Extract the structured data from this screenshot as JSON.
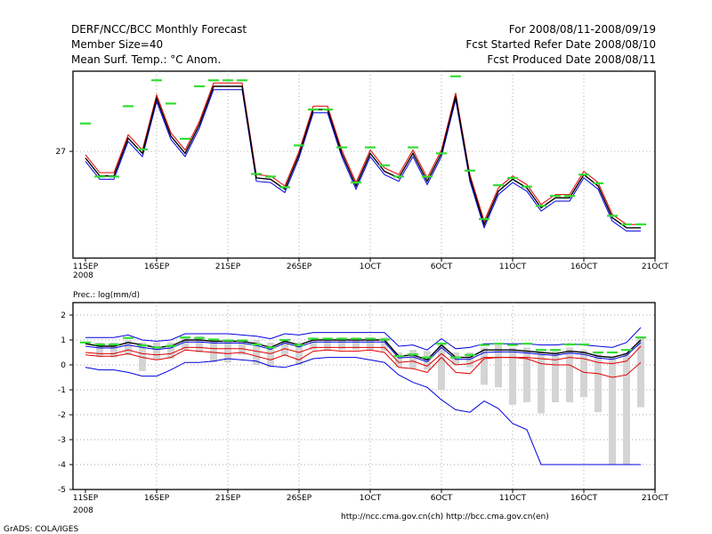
{
  "header": {
    "left": [
      "DERF/NCC/BCC Monthly Forecast",
      "Member Size=40",
      "Mean Surf. Temp.: °C Anom."
    ],
    "right": [
      "For 2008/08/11-2008/09/19",
      "Fcst Started Refer Date 2008/08/10",
      "Fcst Produced Date 2008/08/11"
    ]
  },
  "footer": {
    "urls": "http://ncc.cma.gov.cn(ch)   http://bcc.cma.gov.cn(en)",
    "credit": "GrADS: COLA/IGES"
  },
  "colors": {
    "mean": "#000000",
    "member_hi": "#e00000",
    "member_lo": "#0000e0",
    "bar": "#d4d4d4",
    "obs": "#33dd33",
    "grid": "#888888"
  },
  "chart_data": [
    {
      "type": "line",
      "title": "Mean Surf. Temp.: °C Anom.",
      "x_tick_labels": [
        "11SEP",
        "16SEP",
        "21SEP",
        "26SEP",
        "1OCT",
        "6OCT",
        "11OCT",
        "16OCT",
        "21OCT"
      ],
      "x_year_label": "2008",
      "y_tick_labels": [
        "27"
      ],
      "ylim": [
        25.5,
        28.1
      ],
      "x_start_day": 0,
      "series": [
        {
          "name": "ensemble mean",
          "values": [
            26.9,
            26.63,
            26.63,
            27.2,
            26.97,
            27.8,
            27.23,
            26.97,
            27.4,
            27.98,
            27.98,
            27.98,
            26.6,
            26.58,
            26.43,
            26.95,
            27.63,
            27.63,
            26.97,
            26.48,
            26.97,
            26.7,
            26.6,
            26.97,
            26.55,
            26.97,
            27.83,
            26.6,
            25.9,
            26.4,
            26.58,
            26.45,
            26.15,
            26.3,
            26.3,
            26.65,
            26.48,
            26.0,
            25.85,
            25.85
          ]
        },
        {
          "name": "member high",
          "values": [
            26.95,
            26.68,
            26.68,
            27.25,
            27.02,
            27.85,
            27.28,
            27.02,
            27.45,
            28.03,
            28.03,
            28.03,
            26.65,
            26.63,
            26.48,
            27.0,
            27.68,
            27.68,
            27.02,
            26.53,
            27.02,
            26.75,
            26.65,
            27.02,
            26.6,
            27.02,
            27.88,
            26.65,
            25.95,
            26.45,
            26.63,
            26.5,
            26.2,
            26.35,
            26.35,
            26.7,
            26.53,
            26.05,
            25.9,
            25.9
          ]
        },
        {
          "name": "member low",
          "values": [
            26.85,
            26.58,
            26.58,
            27.15,
            26.92,
            27.75,
            27.18,
            26.92,
            27.35,
            27.93,
            27.93,
            27.93,
            26.55,
            26.53,
            26.38,
            26.9,
            27.58,
            27.58,
            26.92,
            26.43,
            26.92,
            26.65,
            26.55,
            26.92,
            26.5,
            26.92,
            27.78,
            26.55,
            25.85,
            26.35,
            26.53,
            26.4,
            26.1,
            26.25,
            26.25,
            26.6,
            26.43,
            25.95,
            25.8,
            25.8
          ]
        },
        {
          "name": "observed/climatology",
          "values": [
            27.42,
            26.62,
            26.62,
            27.68,
            27.03,
            28.07,
            27.72,
            27.19,
            27.98,
            28.07,
            28.07,
            28.07,
            26.66,
            26.62,
            26.46,
            27.09,
            27.63,
            27.63,
            27.06,
            26.53,
            27.06,
            26.79,
            26.62,
            27.06,
            26.62,
            26.97,
            28.13,
            26.71,
            25.98,
            26.49,
            26.6,
            26.47,
            26.18,
            26.33,
            26.33,
            26.65,
            26.52,
            26.03,
            25.9,
            25.9
          ]
        }
      ]
    },
    {
      "type": "line",
      "title": "Prec.: log(mm/d)",
      "x_tick_labels": [
        "11SEP",
        "16SEP",
        "21SEP",
        "26SEP",
        "1OCT",
        "6OCT",
        "11OCT",
        "16OCT",
        "21OCT"
      ],
      "x_year_label": "2008",
      "y_tick_labels": [
        "2",
        "1",
        "0",
        "-1",
        "-2",
        "-3",
        "-4",
        "-5"
      ],
      "ylim": [
        -5,
        2
      ],
      "series": [
        {
          "name": "upper bound",
          "values": [
            1.1,
            1.1,
            1.1,
            1.2,
            1.0,
            0.95,
            1.0,
            1.25,
            1.25,
            1.25,
            1.25,
            1.2,
            1.15,
            1.05,
            1.25,
            1.2,
            1.3,
            1.3,
            1.3,
            1.3,
            1.3,
            1.3,
            0.75,
            0.8,
            0.6,
            1.05,
            0.65,
            0.7,
            0.85,
            0.85,
            0.85,
            0.85,
            0.8,
            0.8,
            0.85,
            0.8,
            0.75,
            0.7,
            0.9,
            1.5
          ]
        },
        {
          "name": "ensemble mean",
          "values": [
            0.85,
            0.75,
            0.75,
            0.9,
            0.8,
            0.7,
            0.75,
            1.0,
            1.0,
            0.95,
            0.95,
            0.95,
            0.85,
            0.7,
            0.95,
            0.8,
            1.0,
            1.0,
            1.0,
            1.0,
            1.0,
            1.0,
            0.35,
            0.4,
            0.2,
            0.8,
            0.3,
            0.3,
            0.6,
            0.6,
            0.6,
            0.55,
            0.5,
            0.45,
            0.55,
            0.5,
            0.35,
            0.3,
            0.45,
            1.0
          ]
        },
        {
          "name": "member high",
          "values": [
            0.75,
            0.68,
            0.68,
            0.8,
            0.7,
            0.62,
            0.68,
            0.92,
            0.92,
            0.88,
            0.88,
            0.88,
            0.78,
            0.62,
            0.88,
            0.72,
            0.92,
            0.92,
            0.92,
            0.92,
            0.92,
            0.92,
            0.28,
            0.32,
            0.12,
            0.7,
            0.22,
            0.22,
            0.5,
            0.52,
            0.52,
            0.48,
            0.42,
            0.38,
            0.48,
            0.42,
            0.28,
            0.22,
            0.38,
            0.9
          ]
        },
        {
          "name": "member low",
          "values": [
            0.5,
            0.45,
            0.45,
            0.6,
            0.45,
            0.4,
            0.45,
            0.7,
            0.7,
            0.65,
            0.65,
            0.65,
            0.55,
            0.45,
            0.65,
            0.5,
            0.7,
            0.7,
            0.7,
            0.7,
            0.7,
            0.7,
            0.1,
            0.15,
            -0.05,
            0.45,
            0.0,
            0.05,
            0.3,
            0.3,
            0.3,
            0.3,
            0.25,
            0.2,
            0.3,
            0.25,
            0.1,
            0.05,
            0.15,
            0.75
          ]
        },
        {
          "name": "red",
          "values": [
            0.4,
            0.35,
            0.35,
            0.45,
            0.3,
            0.2,
            0.3,
            0.6,
            0.55,
            0.5,
            0.45,
            0.5,
            0.35,
            0.2,
            0.4,
            0.2,
            0.55,
            0.6,
            0.55,
            0.55,
            0.6,
            0.5,
            -0.1,
            -0.15,
            -0.3,
            0.3,
            -0.3,
            -0.35,
            0.25,
            0.3,
            0.3,
            0.25,
            0.05,
            0.0,
            0.0,
            -0.3,
            -0.35,
            -0.5,
            -0.4,
            0.1
          ]
        },
        {
          "name": "lower bound",
          "values": [
            -0.1,
            -0.2,
            -0.2,
            -0.3,
            -0.45,
            -0.45,
            -0.2,
            0.1,
            0.1,
            0.15,
            0.25,
            0.2,
            0.15,
            -0.05,
            -0.1,
            0.05,
            0.25,
            0.3,
            0.3,
            0.3,
            0.2,
            0.1,
            -0.4,
            -0.7,
            -0.9,
            -1.4,
            -1.8,
            -1.9,
            -1.45,
            -1.75,
            -2.35,
            -2.6,
            -4.0,
            -4.0,
            -4.0,
            -4.0,
            -4.0,
            -4.0,
            -4.0,
            -4.0
          ]
        },
        {
          "name": "observed/climatology",
          "values": [
            0.9,
            0.82,
            0.82,
            1.08,
            0.78,
            0.7,
            0.76,
            1.1,
            1.08,
            1.02,
            0.98,
            0.98,
            0.82,
            0.7,
            1.0,
            0.8,
            1.05,
            1.05,
            1.05,
            1.05,
            1.05,
            1.02,
            0.35,
            0.42,
            0.3,
            0.85,
            0.3,
            0.4,
            0.8,
            0.85,
            0.8,
            0.85,
            0.6,
            0.6,
            0.82,
            0.82,
            0.5,
            0.5,
            0.6,
            1.1
          ]
        }
      ],
      "bars": {
        "name": "spread range",
        "top": [
          0.0,
          0.9,
          0.9,
          1.0,
          0.9,
          0.9,
          0.9,
          1.1,
          1.15,
          1.0,
          1.0,
          1.0,
          1.0,
          0.9,
          1.0,
          0.9,
          1.1,
          1.1,
          1.1,
          1.1,
          1.1,
          1.1,
          0.5,
          0.6,
          0.55,
          0.8,
          0.5,
          0.5,
          0.7,
          0.8,
          0.7,
          0.7,
          0.5,
          0.55,
          0.7,
          0.6,
          0.45,
          0.3,
          0.5,
          1.1
        ],
        "bottom": [
          0.0,
          0.3,
          0.3,
          0.4,
          -0.25,
          0.2,
          0.25,
          0.6,
          0.5,
          0.1,
          0.1,
          0.4,
          0.0,
          -0.1,
          0.35,
          0.0,
          0.6,
          0.6,
          0.6,
          0.6,
          0.6,
          0.55,
          -0.1,
          -0.15,
          -0.2,
          -1.0,
          0.0,
          -0.1,
          -0.8,
          -0.9,
          -1.6,
          -1.5,
          -1.95,
          -1.5,
          -1.5,
          -1.3,
          -1.9,
          -4.0,
          -4.0,
          -1.7
        ]
      }
    }
  ]
}
